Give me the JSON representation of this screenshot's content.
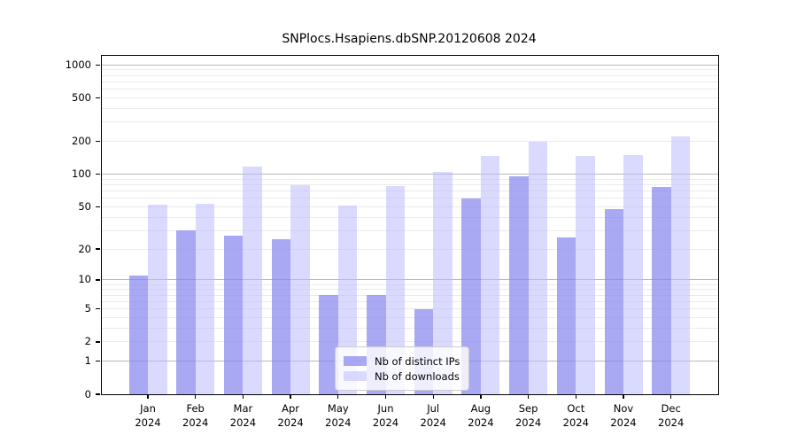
{
  "title": "SNPlocs.Hsapiens.dbSNP.20120608 2024",
  "chart_data": {
    "type": "bar",
    "title": "SNPlocs.Hsapiens.dbSNP.20120608 2024",
    "categories": [
      "Jan 2024",
      "Feb 2024",
      "Mar 2024",
      "Apr 2024",
      "May 2024",
      "Jun 2024",
      "Jul 2024",
      "Aug 2024",
      "Sep 2024",
      "Oct 2024",
      "Nov 2024",
      "Dec 2024"
    ],
    "series": [
      {
        "key": "distinct-ips",
        "name": "Nb of distinct IPs",
        "color": "#8888ee",
        "alpha": 0.72,
        "values": [
          11,
          30,
          27,
          25,
          7,
          7,
          5,
          60,
          96,
          26,
          48,
          76
        ]
      },
      {
        "key": "downloads",
        "name": "Nb of downloads",
        "color": "#bbbbff",
        "alpha": 0.55,
        "values": [
          52,
          53,
          118,
          79,
          51,
          78,
          105,
          148,
          198,
          148,
          150,
          224
        ]
      }
    ],
    "y_axis": {
      "scale": "log10(value+1)",
      "ticks": [
        0,
        1,
        2,
        5,
        10,
        20,
        50,
        100,
        200,
        500,
        1000
      ],
      "major_gridlines": [
        1,
        10,
        100,
        1000
      ],
      "minor_gridlines": [
        2,
        3,
        4,
        5,
        6,
        7,
        8,
        9,
        20,
        30,
        40,
        50,
        60,
        70,
        80,
        90,
        200,
        300,
        400,
        500,
        600,
        700,
        800,
        900
      ],
      "top_value": 1210
    },
    "xlabel": "",
    "ylabel": "",
    "grid": true,
    "legend_position": "lower center"
  }
}
